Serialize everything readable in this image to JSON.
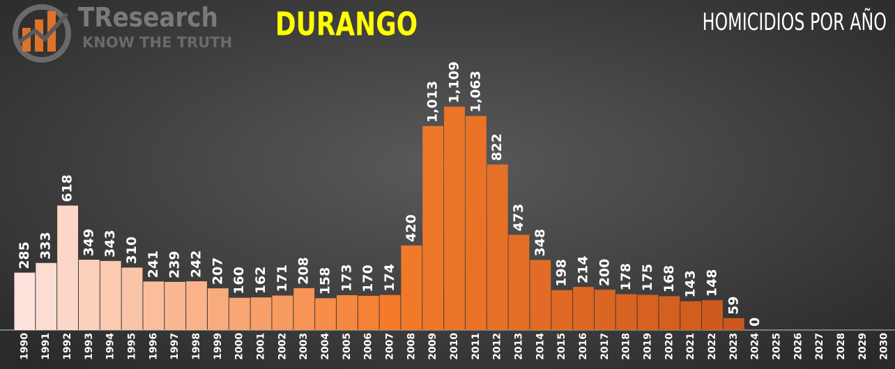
{
  "chart_data": {
    "type": "bar",
    "title": "DURANGO",
    "subtitle": "HOMICIDIOS POR AÑO",
    "logo": {
      "name": "TResearch",
      "tagline": "KNOW THE TRUTH"
    },
    "categories": [
      "1990",
      "1991",
      "1992",
      "1993",
      "1994",
      "1995",
      "1996",
      "1997",
      "1998",
      "1999",
      "2000",
      "2001",
      "2002",
      "2003",
      "2004",
      "2005",
      "2006",
      "2007",
      "2008",
      "2009",
      "2010",
      "2011",
      "2012",
      "2013",
      "2014",
      "2015",
      "2016",
      "2017",
      "2018",
      "2019",
      "2020",
      "2021",
      "2022",
      "2023",
      "2024",
      "2025",
      "2026",
      "2027",
      "2028",
      "2029",
      "2030"
    ],
    "values": [
      285,
      333,
      618,
      349,
      343,
      310,
      241,
      239,
      242,
      207,
      160,
      162,
      171,
      208,
      158,
      173,
      170,
      174,
      420,
      1013,
      1109,
      1063,
      822,
      473,
      348,
      198,
      214,
      200,
      178,
      175,
      168,
      143,
      148,
      59,
      0,
      null,
      null,
      null,
      null,
      null,
      null
    ],
    "value_labels": [
      "285",
      "333",
      "618",
      "349",
      "343",
      "310",
      "241",
      "239",
      "242",
      "207",
      "160",
      "162",
      "171",
      "208",
      "158",
      "173",
      "170",
      "174",
      "420",
      "1,013",
      "1,109",
      "1,063",
      "822",
      "473",
      "348",
      "198",
      "214",
      "200",
      "178",
      "175",
      "168",
      "143",
      "148",
      "59",
      "0",
      null,
      null,
      null,
      null,
      null,
      null
    ],
    "color_stops": [
      "#fde3dc",
      "#f47b2b",
      "#c9561c"
    ],
    "ylim": [
      0,
      1200
    ]
  }
}
